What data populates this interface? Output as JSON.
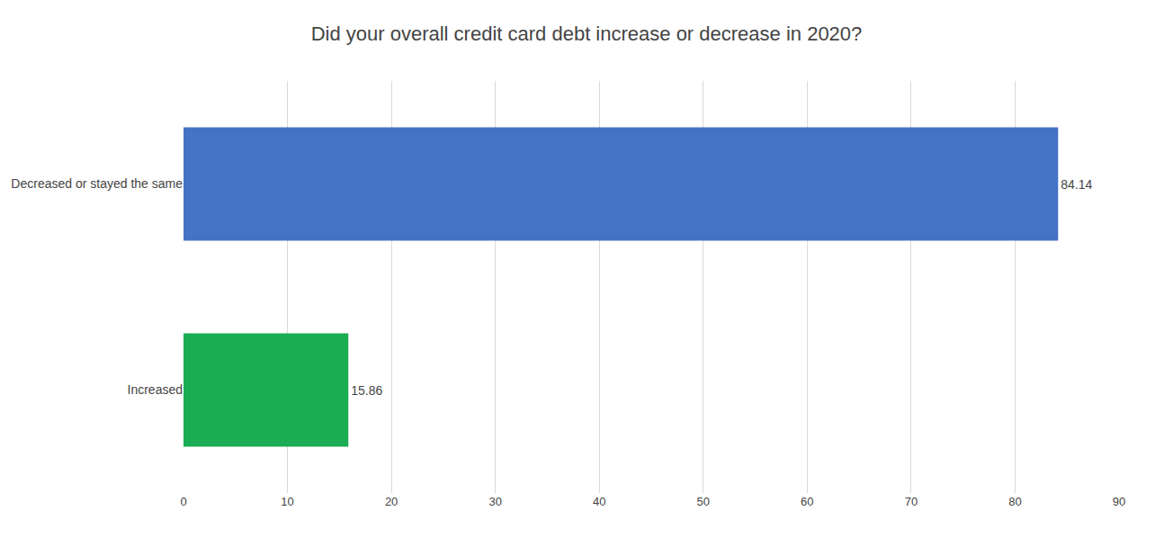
{
  "chart_data": {
    "type": "bar",
    "orientation": "horizontal",
    "title": "Did your overall credit card debt increase or decrease in 2020?",
    "categories": [
      "Increased",
      "Decreased or stayed the same"
    ],
    "values": [
      15.86,
      84.14
    ],
    "colors": [
      "#1AAD52",
      "#4472C4"
    ],
    "xlim": [
      0,
      90
    ],
    "xticks": [
      0,
      10,
      20,
      30,
      40,
      50,
      60,
      70,
      80,
      90
    ],
    "grid": true,
    "data_labels": true
  }
}
